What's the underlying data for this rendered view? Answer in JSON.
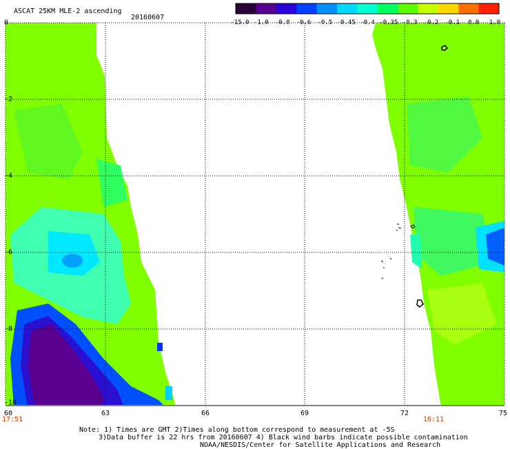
{
  "header": {
    "title": "ASCAT 25KM MLE-2 ascending",
    "date": "20160607"
  },
  "colorbar": {
    "labels": [
      "-15.0",
      "-1.0",
      "-0.8",
      "-0.6",
      "-0.5",
      "-0.45",
      "-0.4",
      "-0.35",
      "-0.3",
      "-0.2",
      "-0.1",
      "0.0",
      "1.0"
    ],
    "colors": [
      "#2a0038",
      "#5a0090",
      "#2a00d8",
      "#0040ff",
      "#0090ff",
      "#00d8ff",
      "#00ffd0",
      "#00ff60",
      "#60ff00",
      "#c8ff00",
      "#ffd800",
      "#ff7000",
      "#ff2000"
    ]
  },
  "axes": {
    "x_ticks": [
      "60",
      "63",
      "66",
      "69",
      "72",
      "75"
    ],
    "y_ticks": [
      "0",
      "-2",
      "-4",
      "-6",
      "-8",
      "-10"
    ],
    "x_range": [
      60,
      75
    ],
    "y_range": [
      -10,
      0
    ]
  },
  "times": {
    "left": "17:51",
    "right": "16:11"
  },
  "notes": {
    "line1": "Note: 1) Times are GMT 2)Times along bottom correspond to measurement at -5S",
    "line2": "3)Data buffer is 22 hrs from 20160607 4) Black wind barbs indicate possible contamination",
    "line3": "NOAA/NESDIS/Center for Satellite Applications and Research"
  }
}
